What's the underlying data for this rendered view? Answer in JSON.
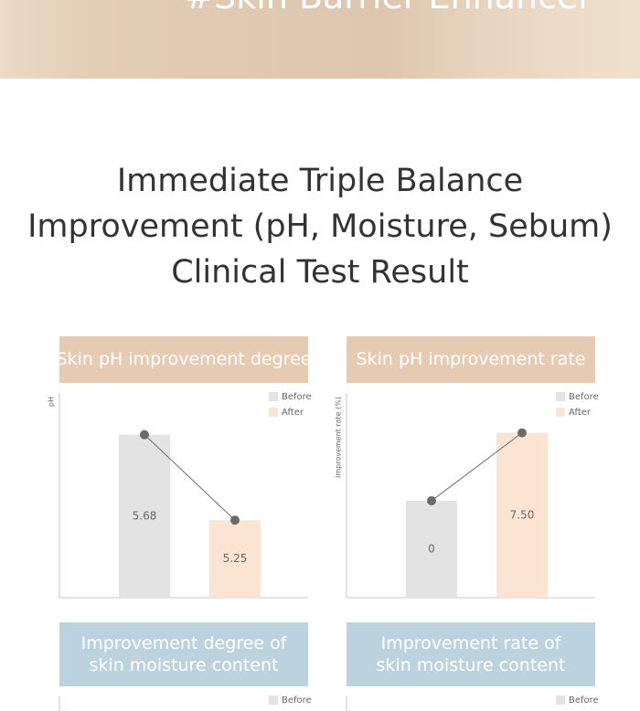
{
  "banner": {
    "text": "#Skin Barrier Enhancer"
  },
  "heading": {
    "lines": [
      "Immediate Triple Balance",
      "Improvement (pH, Moisture, Sebum)",
      "Clinical Test Result"
    ]
  },
  "chart_data": [
    {
      "type": "bar",
      "title": "Skin pH improvement degree",
      "y_label": "pH",
      "categories": [
        null,
        null
      ],
      "series": [
        {
          "name": "Before",
          "color": "#e3e3e3",
          "values": [
            5.68,
            null
          ],
          "value_labels": [
            "5.68",
            null
          ]
        },
        {
          "name": "After",
          "color": "#fbe4d2",
          "values": [
            null,
            5.25
          ],
          "value_labels": [
            null,
            "5.25"
          ]
        }
      ],
      "line_color": "#6e6a66",
      "ylim": [
        4.86,
        5.89
      ]
    },
    {
      "type": "bar",
      "title": "Skin pH improvement rate",
      "y_label": "Improvement rate (%)",
      "categories": [
        null,
        null
      ],
      "series": [
        {
          "name": "Before",
          "color": "#e3e3e3",
          "values": [
            0,
            null
          ]
        },
        {
          "name": "After",
          "color": "#fbe4d2",
          "values": [
            null,
            7.5
          ],
          "value_labels": [
            null,
            "7.50"
          ]
        }
      ],
      "line_color": "#6e6a66",
      "ylim": [
        -10.7,
        11.9
      ]
    },
    {
      "type": "bar",
      "title": "Improvement degree of skin moisture content",
      "series": [
        {
          "name": "Before",
          "color": "#e3e3e3"
        }
      ]
    },
    {
      "type": "bar",
      "title": "Improvement rate of skin moisture content",
      "series": [
        {
          "name": "Before",
          "color": "#e3e3e3"
        }
      ]
    }
  ]
}
